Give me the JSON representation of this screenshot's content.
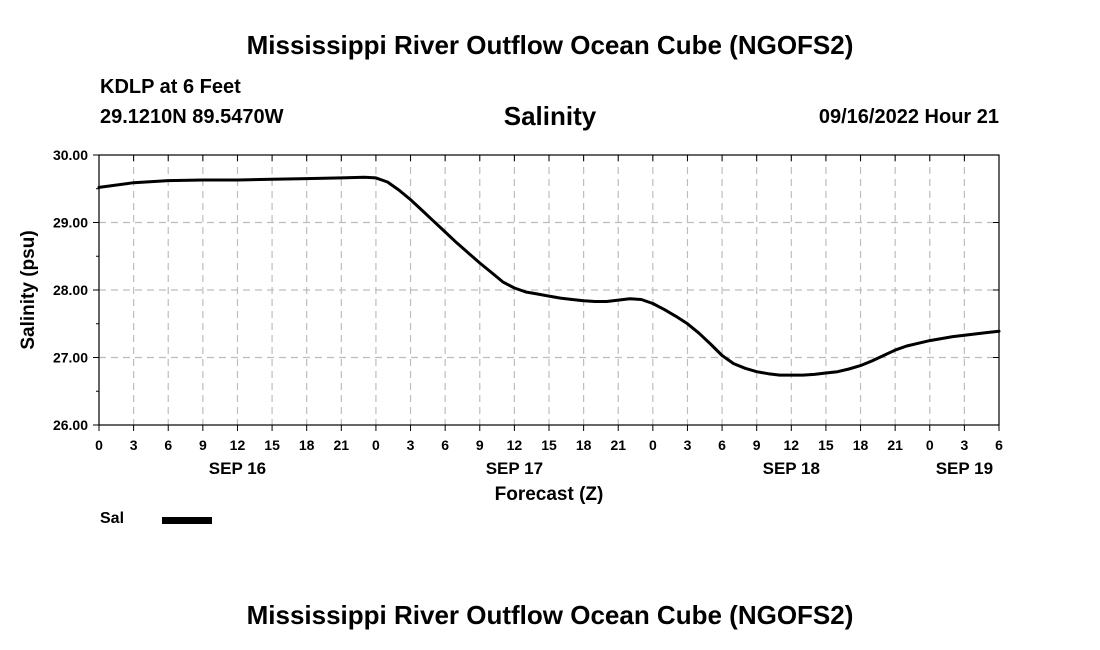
{
  "header": {
    "title": "Mississippi River Outflow Ocean Cube (NGOFS2)",
    "station": "KDLP at 6 Feet",
    "coordinates": "29.1210N  89.5470W",
    "run": "09/16/2022 Hour 21",
    "footer_title": "Mississippi River Outflow Ocean Cube (NGOFS2)"
  },
  "legend": {
    "series_label": "Sal"
  },
  "chart_data": {
    "type": "line",
    "title": "Salinity",
    "xlabel": "Forecast (Z)",
    "ylabel": "Salinity (psu)",
    "ylim": [
      26.0,
      30.0
    ],
    "xlim": [
      0,
      78
    ],
    "x_units": "hours since SEP 16 00Z",
    "y_ticks": [
      "26.00",
      "27.00",
      "28.00",
      "29.00",
      "30.00"
    ],
    "x_tick_labels": [
      "0",
      "3",
      "6",
      "9",
      "12",
      "15",
      "18",
      "21",
      "0",
      "3",
      "6",
      "9",
      "12",
      "15",
      "18",
      "21",
      "0",
      "3",
      "6",
      "9",
      "12",
      "15",
      "18",
      "21",
      "0",
      "3",
      "6"
    ],
    "date_labels": [
      {
        "hour": 12,
        "label": "SEP 16"
      },
      {
        "hour": 36,
        "label": "SEP 17"
      },
      {
        "hour": 60,
        "label": "SEP 18"
      },
      {
        "hour": 75,
        "label": "SEP 19"
      }
    ],
    "grid": true,
    "series": [
      {
        "name": "Sal",
        "color": "#000000",
        "x": [
          0,
          3,
          6,
          9,
          12,
          15,
          18,
          21,
          23,
          24,
          25,
          26,
          27,
          28,
          29,
          30,
          31,
          32,
          33,
          34,
          35,
          36,
          37,
          38,
          39,
          40,
          41,
          42,
          43,
          44,
          45,
          46,
          47,
          48,
          49,
          50,
          51,
          52,
          53,
          54,
          55,
          56,
          57,
          58,
          59,
          60,
          61,
          62,
          63,
          64,
          65,
          66,
          67,
          68,
          69,
          70,
          71,
          72,
          73,
          74,
          75,
          76,
          77,
          78
        ],
        "values": [
          29.52,
          29.59,
          29.62,
          29.63,
          29.63,
          29.64,
          29.65,
          29.66,
          29.67,
          29.66,
          29.6,
          29.48,
          29.34,
          29.18,
          29.02,
          28.86,
          28.7,
          28.55,
          28.4,
          28.26,
          28.12,
          28.03,
          27.97,
          27.94,
          27.91,
          27.88,
          27.86,
          27.84,
          27.83,
          27.83,
          27.85,
          27.87,
          27.86,
          27.8,
          27.71,
          27.61,
          27.5,
          27.36,
          27.2,
          27.03,
          26.91,
          26.84,
          26.79,
          26.76,
          26.74,
          26.74,
          26.74,
          26.75,
          26.77,
          26.79,
          26.83,
          26.88,
          26.95,
          27.03,
          27.11,
          27.17,
          27.21,
          27.25,
          27.28,
          27.31,
          27.33,
          27.35,
          27.37,
          27.39
        ]
      }
    ]
  }
}
